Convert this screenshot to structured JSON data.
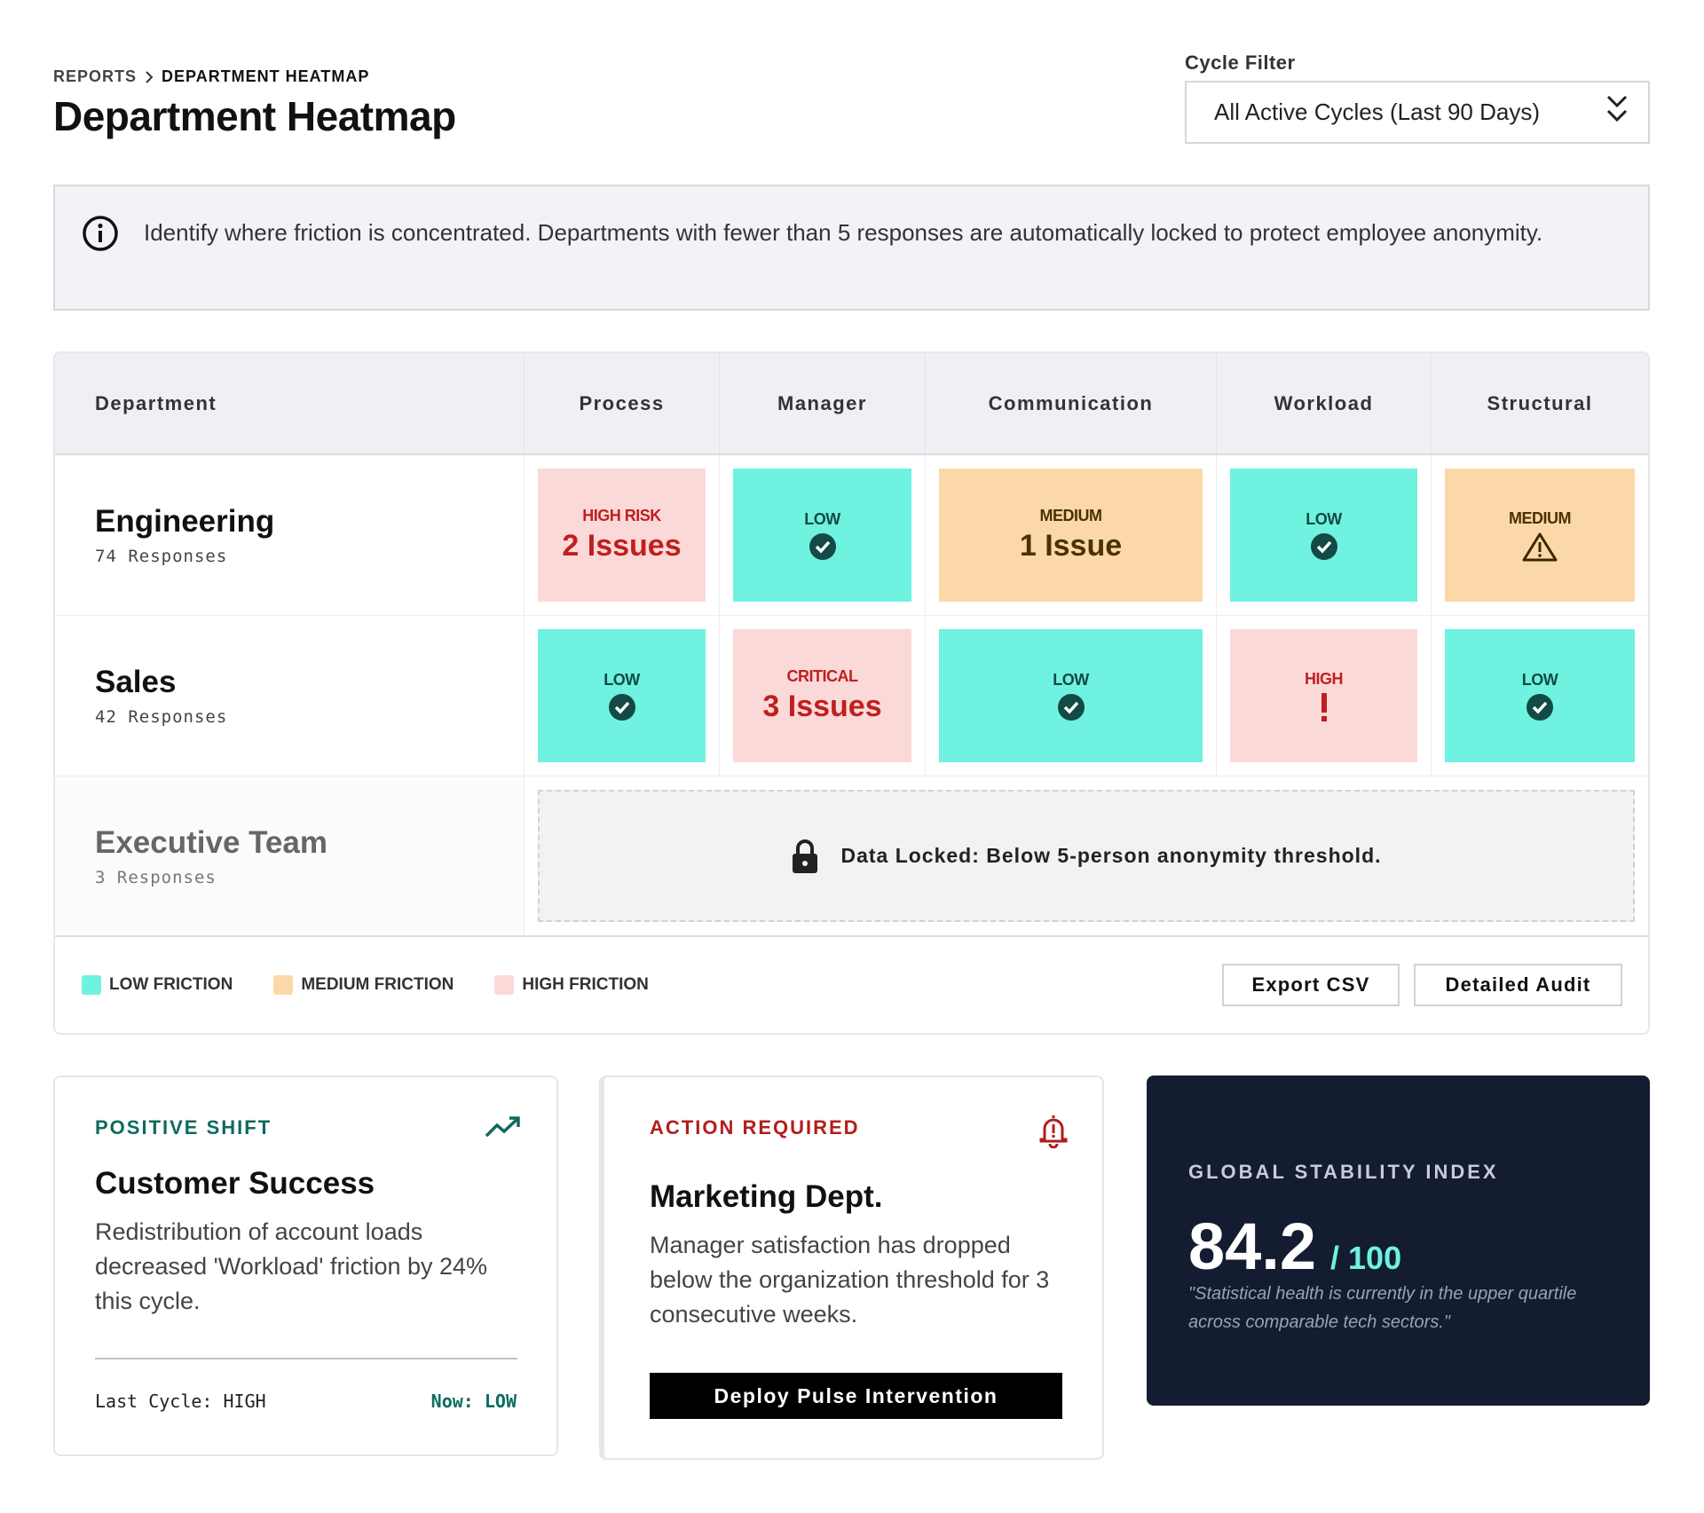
{
  "breadcrumb": {
    "parent": "REPORTS",
    "current": "DEPARTMENT HEATMAP"
  },
  "header": {
    "title": "Department Heatmap"
  },
  "cycle_filter": {
    "label": "Cycle Filter",
    "value": "All Active Cycles (Last 90 Days)"
  },
  "notice": "Identify where friction is concentrated. Departments with fewer than 5 responses are automatically locked to protect employee anonymity.",
  "table": {
    "columns": [
      "Department",
      "Process",
      "Manager",
      "Communication",
      "Workload",
      "Structural"
    ],
    "rows": [
      {
        "department": "Engineering",
        "responses": "74 Responses",
        "cells": [
          {
            "level": "HIGH RISK",
            "detail": "2 Issues"
          },
          {
            "level": "LOW"
          },
          {
            "level": "MEDIUM",
            "detail": "1 Issue"
          },
          {
            "level": "LOW"
          },
          {
            "level": "MEDIUM"
          }
        ]
      },
      {
        "department": "Sales",
        "responses": "42 Responses",
        "cells": [
          {
            "level": "LOW"
          },
          {
            "level": "CRITICAL",
            "detail": "3 Issues"
          },
          {
            "level": "LOW"
          },
          {
            "level": "HIGH"
          },
          {
            "level": "LOW"
          }
        ]
      },
      {
        "department": "Executive Team",
        "responses": "3 Responses",
        "locked_message": "Data Locked: Below 5-person anonymity threshold."
      }
    ]
  },
  "legend": [
    "LOW FRICTION",
    "MEDIUM FRICTION",
    "HIGH FRICTION"
  ],
  "actions": [
    "Export CSV",
    "Detailed Audit"
  ],
  "cards": [
    {
      "kicker": "POSITIVE SHIFT",
      "title": "Customer Success",
      "body": "Redistribution of account loads decreased 'Workload' friction by 24% this cycle.",
      "last_cycle": "Last Cycle: HIGH",
      "now": "Now: LOW"
    },
    {
      "kicker": "ACTION REQUIRED",
      "title": "Marketing Dept.",
      "body": "Manager satisfaction has dropped below the organization threshold for 3 consecutive weeks.",
      "button": "Deploy Pulse Intervention"
    },
    {
      "kicker": "GLOBAL STABILITY INDEX",
      "value": "84.2",
      "scale": "/ 100",
      "quote": "\"Statistical health is currently in the upper quartile across comparable tech sectors.\""
    }
  ]
}
